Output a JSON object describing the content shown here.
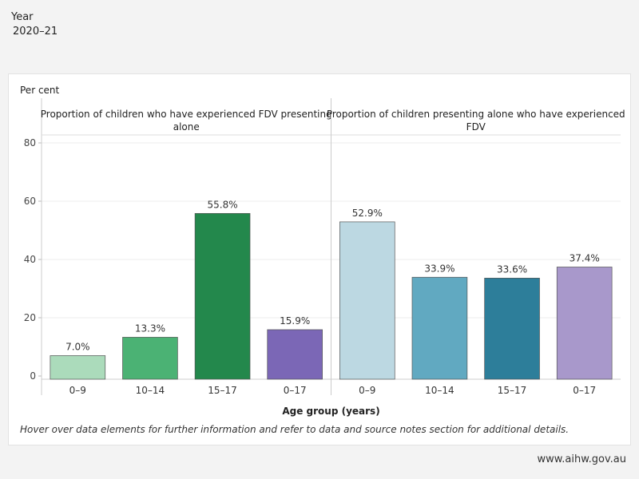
{
  "filter": {
    "label": "Year",
    "value": "2020–21"
  },
  "footer": {
    "brand": "www.aihw.gov.au"
  },
  "chart_data": {
    "type": "bar",
    "ylabel": "Per cent",
    "xlabel": "Age group (years)",
    "ylim": [
      0,
      80
    ],
    "yticks": [
      0,
      20,
      40,
      60,
      80
    ],
    "grid": true,
    "note": "Hover over data elements for further information and refer to data and source notes section for additional details.",
    "panels": [
      {
        "title_lines": [
          "Proportion of children who have experienced FDV presenting",
          "alone"
        ],
        "categories": [
          "0–9",
          "10–14",
          "15–17",
          "0–17"
        ],
        "values": [
          7.0,
          13.3,
          55.8,
          15.9
        ],
        "labels": [
          "7.0%",
          "13.3%",
          "55.8%",
          "15.9%"
        ],
        "colors": [
          "#abdbbb",
          "#4bb274",
          "#23884c",
          "#7b67b6"
        ]
      },
      {
        "title_lines": [
          "Proportion of children presenting alone who have experienced",
          "FDV"
        ],
        "categories": [
          "0–9",
          "10–14",
          "15–17",
          "0–17"
        ],
        "values": [
          52.9,
          33.9,
          33.6,
          37.4
        ],
        "labels": [
          "52.9%",
          "33.9%",
          "33.6%",
          "37.4%"
        ],
        "colors": [
          "#bcd8e2",
          "#61a9c1",
          "#2d7e9a",
          "#a898cb"
        ]
      }
    ]
  }
}
